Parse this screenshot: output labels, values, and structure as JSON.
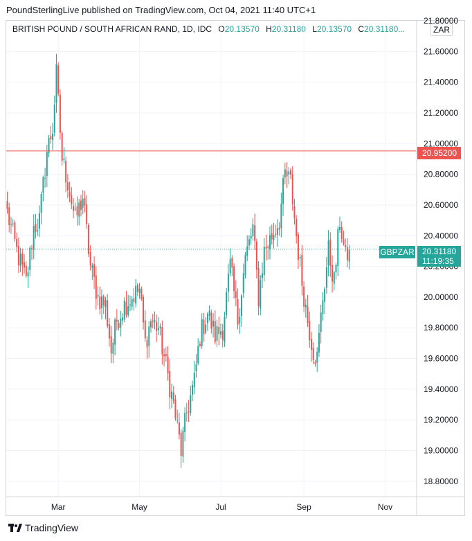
{
  "header": {
    "publish_text": "PoundSterlingLive published on TradingView.com, Oct 04, 2021 11:40 UTC+1",
    "symbol_title": "BRITISH POUND / SOUTH AFRICAN RAND, 1D, IDC",
    "ohlc": [
      {
        "key": "O",
        "value": "20.13570"
      },
      {
        "key": "H",
        "value": "20.31180"
      },
      {
        "key": "L",
        "value": "20.13570"
      },
      {
        "key": "C",
        "value": "20.31180..."
      }
    ],
    "currency": "ZAR"
  },
  "footer": {
    "brand": "TradingView"
  },
  "badges": {
    "symbol": "GBPZAR",
    "last_price": "20.31180",
    "countdown": "11:19:35",
    "line_price": "20.95200"
  },
  "colors": {
    "up": "#26a69a",
    "down": "#ef5350",
    "grid": "#f0f3fa",
    "hline": "#ef5350"
  },
  "chart_data": {
    "type": "candlestick",
    "title": "BRITISH POUND / SOUTH AFRICAN RAND, 1D, IDC",
    "xlabel": "",
    "ylabel": "",
    "ylim": [
      18.7,
      21.8
    ],
    "y_ticks": [
      "21.80000",
      "21.60000",
      "21.40000",
      "21.20000",
      "21.00000",
      "20.80000",
      "20.60000",
      "20.40000",
      "20.20000",
      "20.00000",
      "19.80000",
      "19.60000",
      "19.40000",
      "19.20000",
      "19.00000",
      "18.80000"
    ],
    "x_ticks": [
      {
        "label": "Mar",
        "index": 27
      },
      {
        "label": "May",
        "index": 70
      },
      {
        "label": "Jul",
        "index": 113
      },
      {
        "label": "Sep",
        "index": 157
      },
      {
        "label": "Nov",
        "index": 200
      }
    ],
    "horizontal_line": 20.952,
    "last_close": 20.3118,
    "grid": true,
    "waypoints": [
      [
        0,
        20.55
      ],
      [
        5,
        20.3
      ],
      [
        10,
        20.1
      ],
      [
        14,
        20.45
      ],
      [
        17,
        20.5
      ],
      [
        21,
        20.95
      ],
      [
        24,
        21.1
      ],
      [
        26,
        21.45
      ],
      [
        29,
        20.9
      ],
      [
        32,
        20.75
      ],
      [
        36,
        20.5
      ],
      [
        40,
        20.65
      ],
      [
        44,
        20.2
      ],
      [
        48,
        20.0
      ],
      [
        52,
        19.95
      ],
      [
        55,
        19.65
      ],
      [
        58,
        19.85
      ],
      [
        62,
        19.95
      ],
      [
        66,
        20.0
      ],
      [
        70,
        20.05
      ],
      [
        73,
        19.7
      ],
      [
        76,
        19.85
      ],
      [
        80,
        19.8
      ],
      [
        84,
        19.55
      ],
      [
        88,
        19.3
      ],
      [
        92,
        19.0
      ],
      [
        95,
        19.25
      ],
      [
        99,
        19.45
      ],
      [
        102,
        19.75
      ],
      [
        106,
        19.9
      ],
      [
        110,
        19.75
      ],
      [
        114,
        19.8
      ],
      [
        118,
        20.2
      ],
      [
        122,
        19.85
      ],
      [
        126,
        20.25
      ],
      [
        130,
        20.45
      ],
      [
        133,
        20.0
      ],
      [
        136,
        20.3
      ],
      [
        140,
        20.4
      ],
      [
        144,
        20.5
      ],
      [
        147,
        20.8
      ],
      [
        150,
        20.75
      ],
      [
        153,
        20.4
      ],
      [
        156,
        20.1
      ],
      [
        159,
        19.85
      ],
      [
        162,
        19.65
      ],
      [
        164,
        19.6
      ],
      [
        167,
        20.0
      ],
      [
        170,
        20.3
      ],
      [
        173,
        20.1
      ],
      [
        176,
        20.5
      ],
      [
        179,
        20.25
      ],
      [
        181,
        20.31
      ]
    ]
  }
}
